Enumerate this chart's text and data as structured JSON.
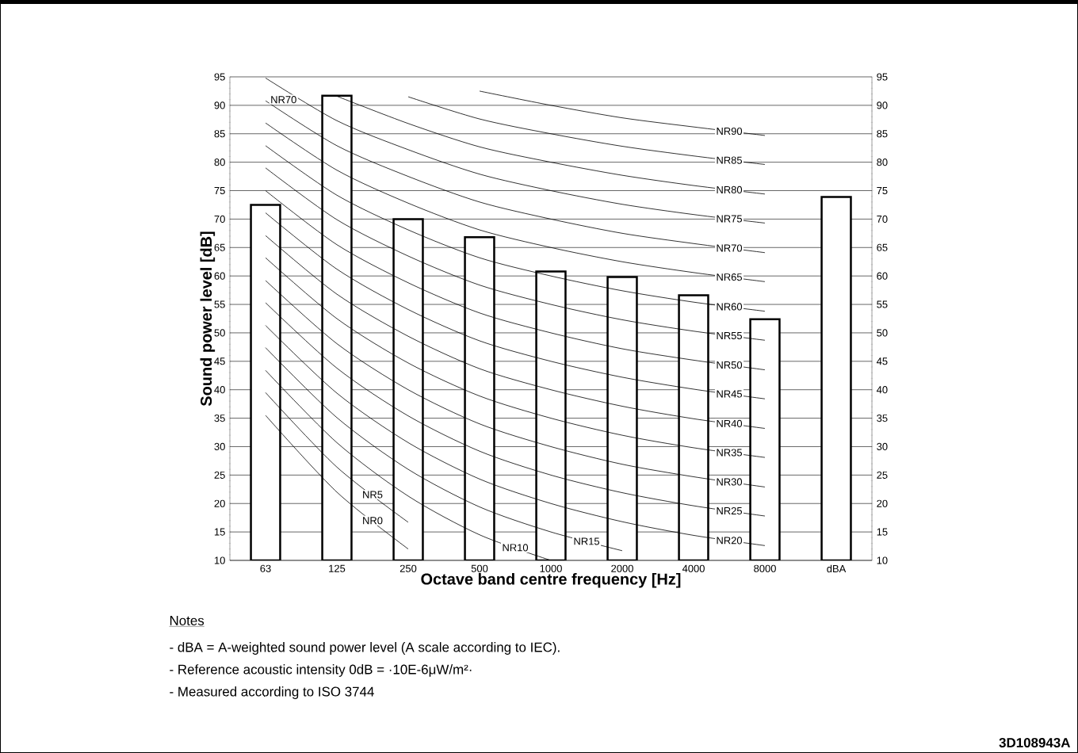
{
  "chart_data": {
    "type": "bar",
    "xlabel": "Octave band centre frequency [Hz]",
    "ylabel": "Sound power level [dB]",
    "categories": [
      "63",
      "125",
      "250",
      "500",
      "1000",
      "2000",
      "4000",
      "8000",
      "dBA"
    ],
    "series": [
      {
        "color": "#ffffff",
        "values": [
          72.5,
          91.7,
          70,
          66.8,
          60.8,
          59.8,
          56.6,
          52.4,
          73.9
        ]
      },
      {
        "type": "line",
        "name": "NR0",
        "color": "#000000",
        "values": [
          35.5,
          22.0,
          12.0,
          null,
          null,
          null,
          null,
          null,
          null
        ]
      },
      {
        "type": "line",
        "name": "NR5",
        "color": "#000000",
        "values": [
          39.5,
          26.4,
          16.7,
          null,
          null,
          null,
          null,
          null,
          null
        ]
      },
      {
        "type": "line",
        "name": "NR10",
        "color": "#000000",
        "values": [
          43.4,
          30.7,
          21.3,
          14.5,
          10.0,
          null,
          null,
          null,
          null
        ]
      },
      {
        "type": "line",
        "name": "NR15",
        "color": "#000000",
        "values": [
          47.4,
          35.1,
          26.0,
          19.4,
          15.0,
          11.7,
          null,
          null,
          null
        ]
      },
      {
        "type": "line",
        "name": "NR20",
        "color": "#000000",
        "values": [
          51.3,
          39.4,
          30.7,
          24.3,
          20.0,
          16.8,
          14.4,
          12.6,
          null
        ]
      },
      {
        "type": "line",
        "name": "NR25",
        "color": "#000000",
        "values": [
          55.3,
          43.8,
          35.4,
          29.2,
          25.0,
          21.9,
          19.6,
          17.8,
          null
        ]
      },
      {
        "type": "line",
        "name": "NR30",
        "color": "#000000",
        "values": [
          59.2,
          48.1,
          40.0,
          34.0,
          30.0,
          26.9,
          24.7,
          22.9,
          null
        ]
      },
      {
        "type": "line",
        "name": "NR35",
        "color": "#000000",
        "values": [
          63.2,
          52.5,
          44.7,
          38.9,
          35.0,
          32.0,
          29.8,
          28.1,
          null
        ]
      },
      {
        "type": "line",
        "name": "NR40",
        "color": "#000000",
        "values": [
          67.1,
          56.8,
          49.4,
          43.7,
          40.0,
          37.1,
          34.9,
          33.2,
          null
        ]
      },
      {
        "type": "line",
        "name": "NR45",
        "color": "#000000",
        "values": [
          71.1,
          61.2,
          54.1,
          48.6,
          45.0,
          42.2,
          40.1,
          38.4,
          null
        ]
      },
      {
        "type": "line",
        "name": "NR50",
        "color": "#000000",
        "values": [
          75.0,
          65.5,
          58.8,
          53.5,
          50.0,
          47.2,
          45.2,
          43.5,
          null
        ]
      },
      {
        "type": "line",
        "name": "NR55",
        "color": "#000000",
        "values": [
          79.0,
          69.9,
          63.5,
          58.4,
          55.0,
          52.3,
          50.3,
          48.7,
          null
        ]
      },
      {
        "type": "line",
        "name": "NR60",
        "color": "#000000",
        "values": [
          82.9,
          74.2,
          68.1,
          63.2,
          60.0,
          57.4,
          55.4,
          53.8,
          null
        ]
      },
      {
        "type": "line",
        "name": "NR65",
        "color": "#000000",
        "values": [
          86.9,
          78.6,
          72.8,
          68.1,
          65.0,
          62.5,
          60.6,
          59.0,
          null
        ]
      },
      {
        "type": "line",
        "name": "NR70",
        "color": "#000000",
        "values": [
          90.8,
          82.9,
          77.5,
          73.0,
          70.0,
          67.5,
          65.7,
          64.1,
          null
        ]
      },
      {
        "type": "line",
        "name": "NR75",
        "color": "#000000",
        "values": [
          94.8,
          87.3,
          82.2,
          77.9,
          75.0,
          72.6,
          70.8,
          69.3,
          null
        ]
      },
      {
        "type": "line",
        "name": "NR80",
        "color": "#000000",
        "values": [
          null,
          91.6,
          86.8,
          82.7,
          80.0,
          77.7,
          75.9,
          74.4,
          null
        ]
      },
      {
        "type": "line",
        "name": "NR85",
        "color": "#000000",
        "values": [
          null,
          null,
          91.5,
          87.6,
          85.0,
          82.8,
          81.1,
          79.6,
          null
        ]
      },
      {
        "type": "line",
        "name": "NR90",
        "color": "#000000",
        "values": [
          null,
          null,
          null,
          92.5,
          90.0,
          87.8,
          86.2,
          84.7,
          null
        ]
      }
    ],
    "ylim": [
      10,
      95
    ],
    "yticks": [
      10,
      15,
      20,
      25,
      30,
      35,
      40,
      45,
      50,
      55,
      60,
      65,
      70,
      75,
      80,
      85,
      90,
      95
    ],
    "y2lim": [
      10,
      95
    ],
    "y2ticks": [
      10,
      15,
      20,
      25,
      30,
      35,
      40,
      45,
      50,
      55,
      60,
      65,
      70,
      75,
      80,
      85,
      90,
      95
    ],
    "grid": "y",
    "annotations": [
      {
        "text": "NR70",
        "x": "63",
        "y": 91
      },
      "Notes",
      "- dBA = A-weighted sound power level (A scale according to IEC).",
      "- Reference acoustic intensity 0dB = ·10E-6μW/m²·",
      "- Measured according to ISO 3744",
      "3D108943A"
    ]
  }
}
